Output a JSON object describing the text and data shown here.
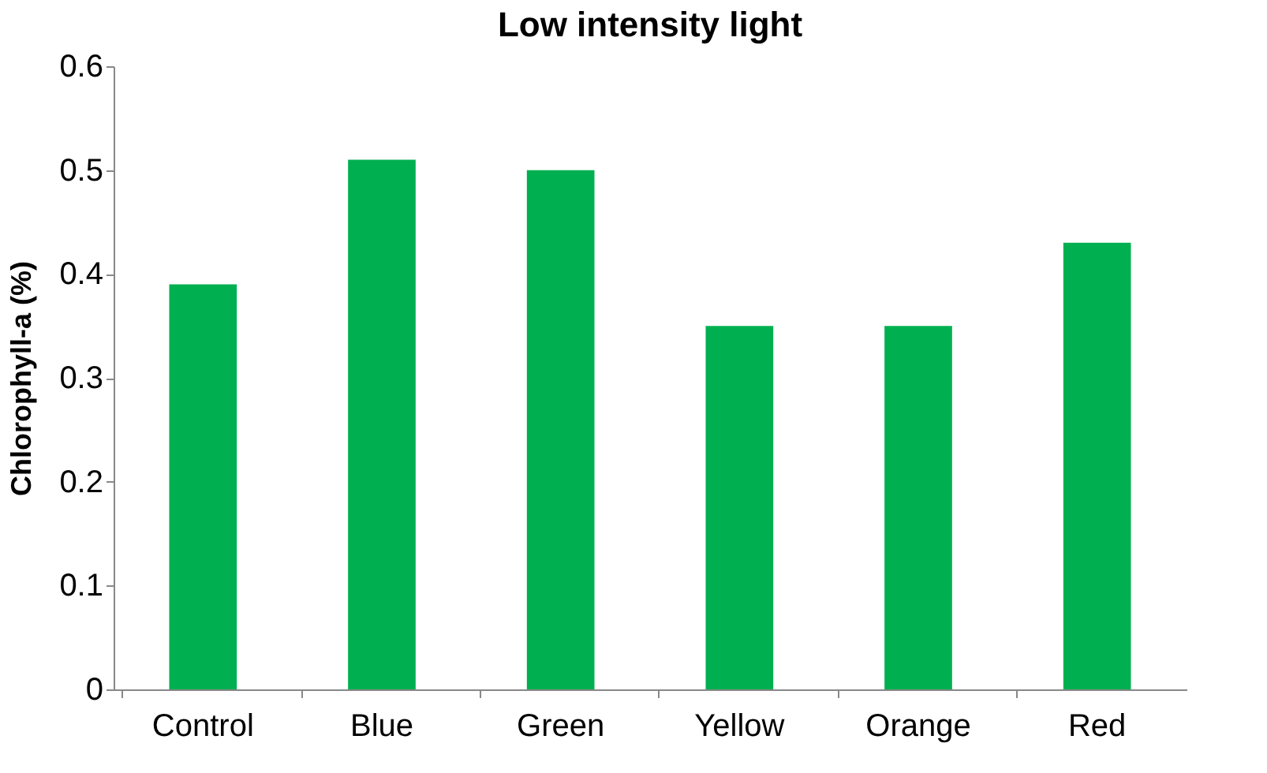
{
  "chart_data": {
    "type": "bar",
    "title": "Low intensity light",
    "ylabel": "Chlorophyll-a (%)",
    "categories": [
      "Control",
      "Blue",
      "Green",
      "Yellow",
      "Orange",
      "Red"
    ],
    "values": [
      0.39,
      0.51,
      0.5,
      0.35,
      0.35,
      0.43
    ],
    "color": "#00b050",
    "ylim": [
      0,
      0.6
    ],
    "yticks": [
      0,
      0.1,
      0.2,
      0.3,
      0.4,
      0.5,
      0.6
    ],
    "grid": false
  }
}
